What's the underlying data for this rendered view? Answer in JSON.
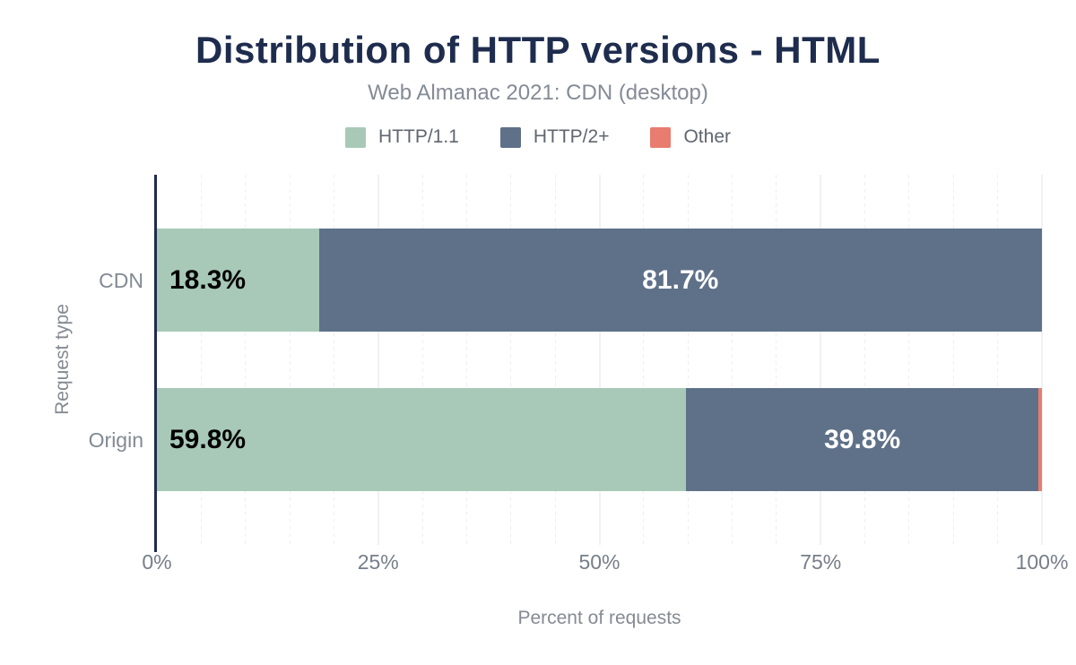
{
  "title": "Distribution of HTTP versions - HTML",
  "subtitle": "Web Almanac 2021: CDN (desktop)",
  "colors": {
    "title_navy": "#1e2c4e",
    "axis_line": "#1e2c4e",
    "green": "#a8c9b8",
    "blue_gray": "#5f7189",
    "salmon": "#e87c6e",
    "label_on_green": "#000000",
    "label_on_blue": "#ffffff",
    "muted_text": "#828a94"
  },
  "chart_data": {
    "type": "bar",
    "orientation": "horizontal",
    "stacked": true,
    "title": "Distribution of HTTP versions - HTML",
    "subtitle": "Web Almanac 2021: CDN (desktop)",
    "categories": [
      "CDN",
      "Origin"
    ],
    "series": [
      {
        "name": "HTTP/1.1",
        "color": "#a8c9b8",
        "values": [
          18.3,
          59.8
        ],
        "label_color": "#000000",
        "label_align": "left",
        "show_labels": true
      },
      {
        "name": "HTTP/2+",
        "color": "#5f7189",
        "values": [
          81.7,
          39.8
        ],
        "label_color": "#ffffff",
        "label_align": "center",
        "show_labels": true
      },
      {
        "name": "Other",
        "color": "#e87c6e",
        "values": [
          0.0,
          0.4
        ],
        "label_color": "#ffffff",
        "label_align": "center",
        "show_labels": false
      }
    ],
    "bar_value_labels": [
      "18.3%",
      "81.7%",
      "59.8%",
      "39.8%"
    ],
    "xlabel": "Percent of requests",
    "ylabel": "Request type",
    "xlim": [
      0,
      100
    ],
    "x_ticks": [
      "0%",
      "25%",
      "50%",
      "75%",
      "100%"
    ],
    "x_tick_values": [
      0,
      25,
      50,
      75,
      100
    ],
    "minor_grid_step": 5,
    "grid": true,
    "legend_position": "top"
  }
}
